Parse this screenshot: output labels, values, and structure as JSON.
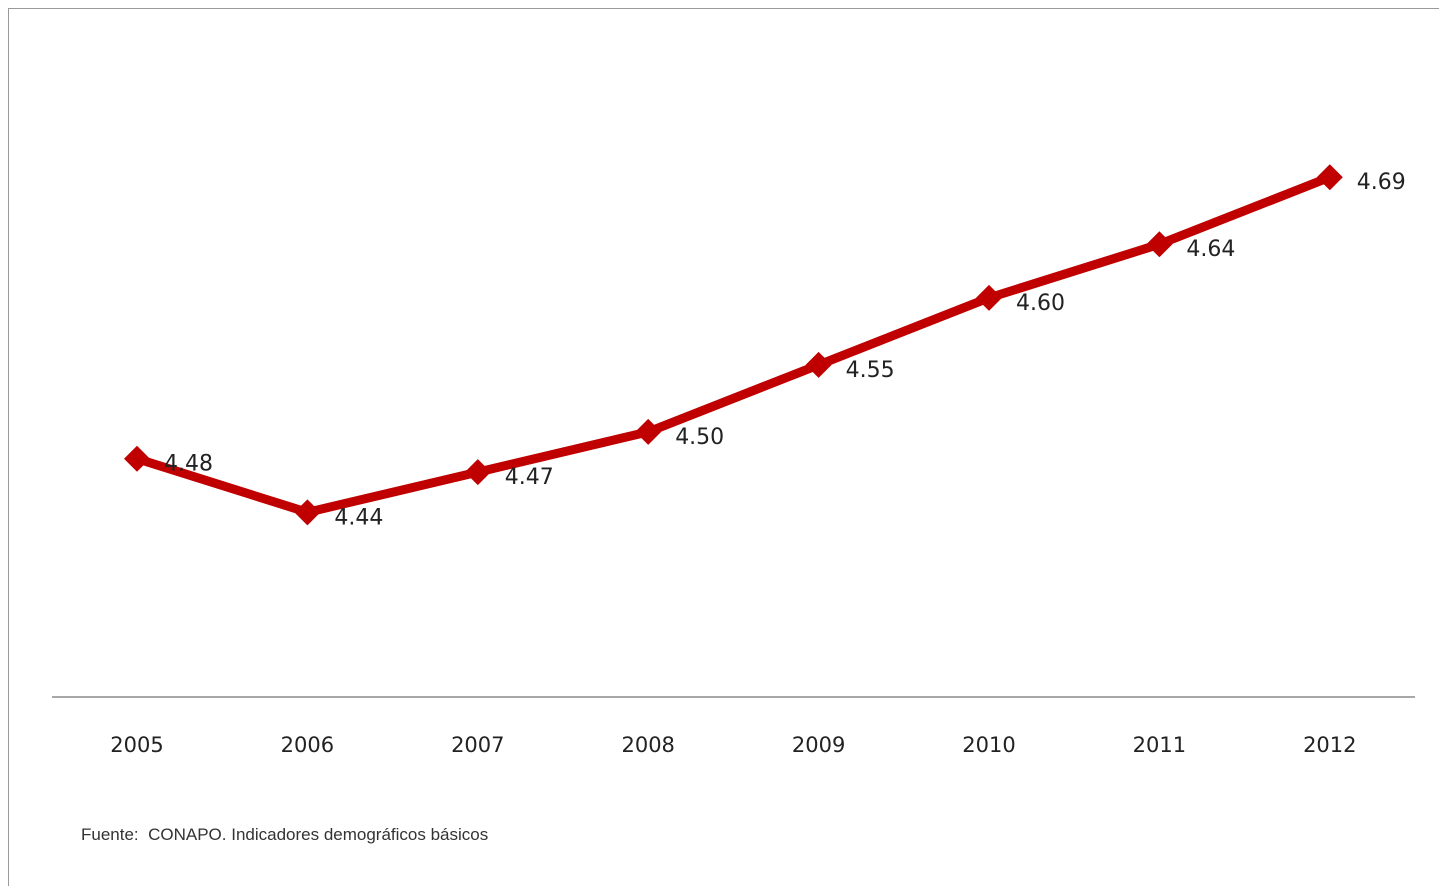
{
  "chart_data": {
    "type": "line",
    "categories": [
      "2005",
      "2006",
      "2007",
      "2008",
      "2009",
      "2010",
      "2011",
      "2012"
    ],
    "series": [
      {
        "values": [
          4.48,
          4.44,
          4.47,
          4.5,
          4.55,
          4.6,
          4.64,
          4.69
        ],
        "labels": [
          "4.48",
          "4.44",
          "4.47",
          "4.50",
          "4.55",
          "4.60",
          "4.64",
          "4.69"
        ]
      }
    ],
    "ylim": [
      4.3,
      4.72
    ],
    "grid": false,
    "line_color": "#c00000"
  },
  "source": "Fuente:  CONAPO. Indicadores demográficos básicos"
}
